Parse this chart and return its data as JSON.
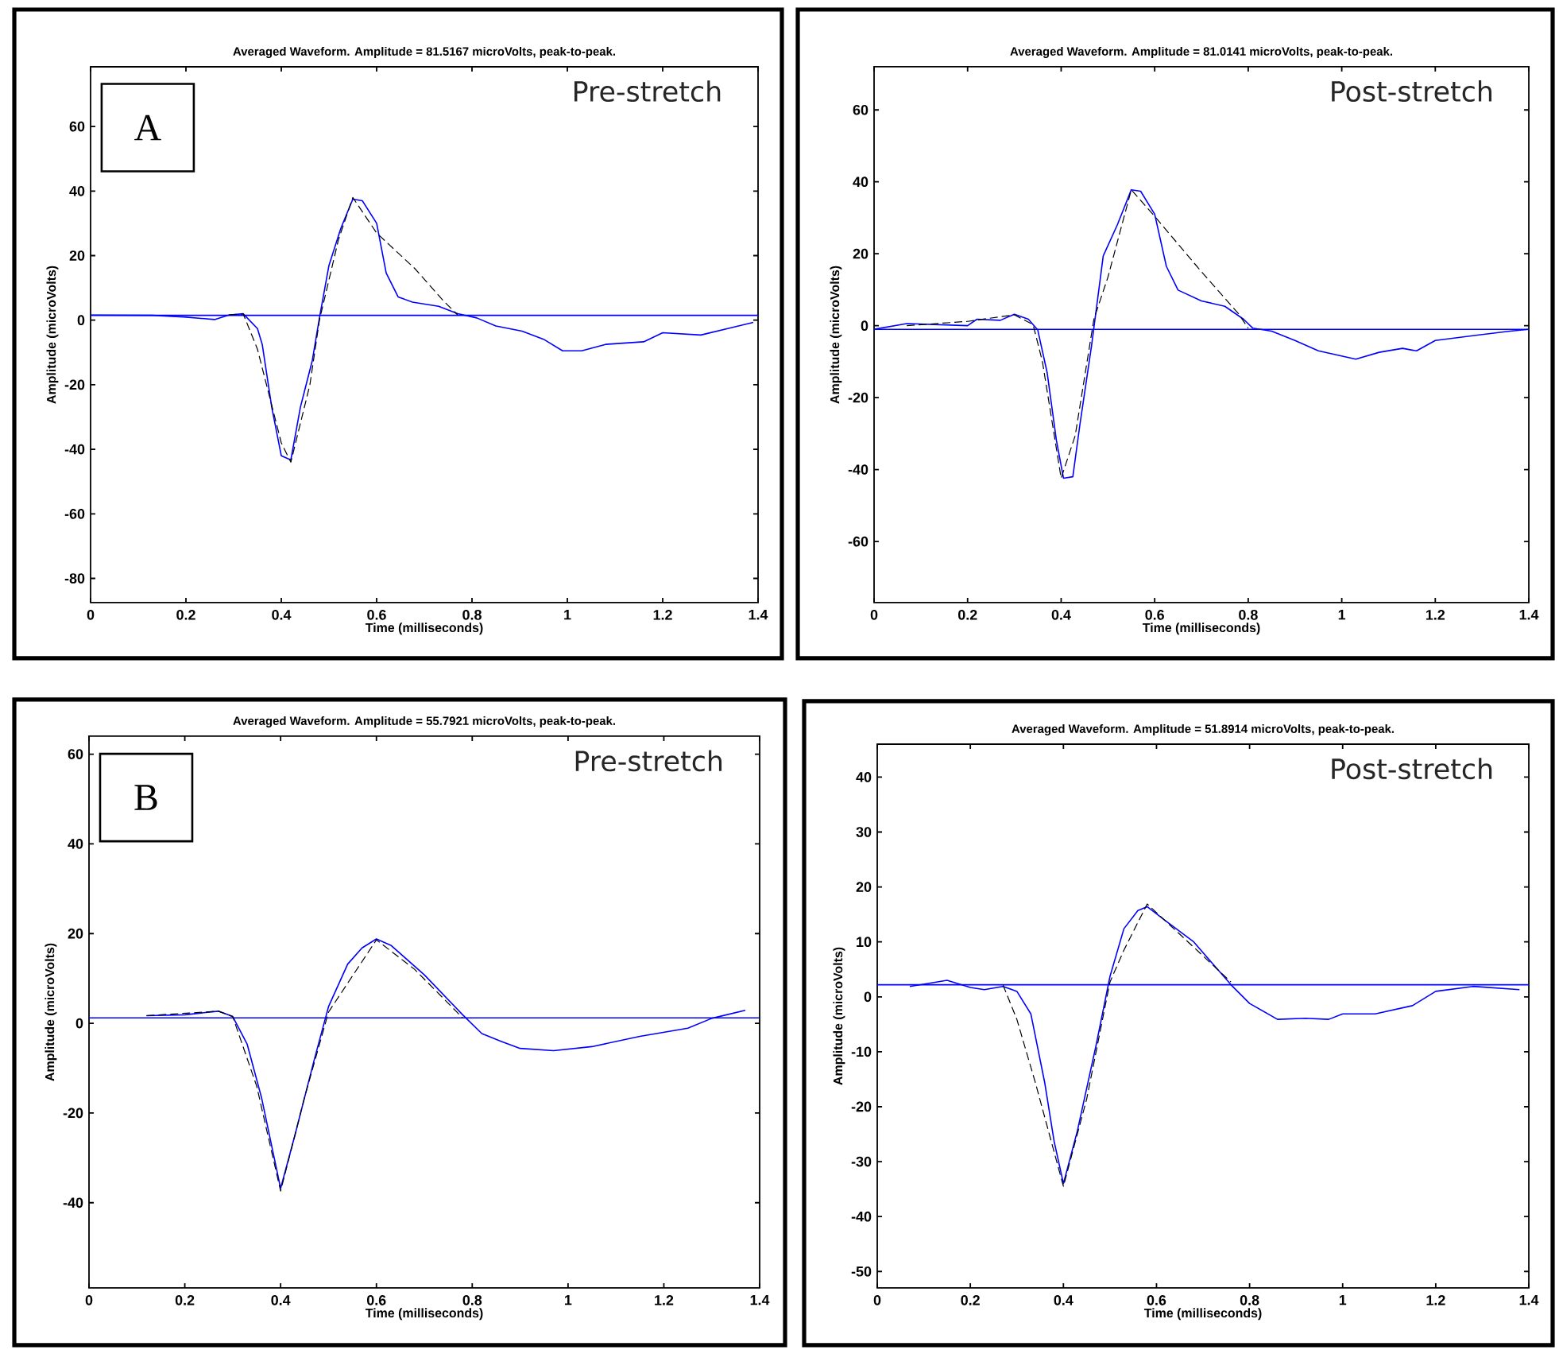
{
  "chart_data": [
    {
      "type": "line",
      "title": "Averaged Waveform.  Amplitude =  81.5167 microVolts, peak-to-peak.",
      "xlabel": "Time (milliseconds)",
      "ylabel": "Amplitude (microVolts)",
      "annotations": [
        "A",
        "Pre-stretch"
      ],
      "xlim": [
        0,
        1.4
      ],
      "ylim": [
        -87.5,
        78.5
      ],
      "xticks": [
        0,
        0.2,
        0.4,
        0.6,
        0.8,
        1,
        1.2,
        1.4
      ],
      "yticks": [
        -80,
        -60,
        -40,
        -20,
        0,
        20,
        40,
        60
      ],
      "ref_lines": [
        {
          "axis": "y",
          "value": 1.5,
          "color": "#0000ff"
        }
      ],
      "series": [
        {
          "color": "#0000ff",
          "line_style": "solid",
          "x": [
            0,
            0.13,
            0.195,
            0.26,
            0.29,
            0.32,
            0.35,
            0.36,
            0.38,
            0.4,
            0.42,
            0.44,
            0.465,
            0.48,
            0.5,
            0.525,
            0.55,
            0.57,
            0.6,
            0.62,
            0.645,
            0.675,
            0.73,
            0.77,
            0.81,
            0.85,
            0.905,
            0.95,
            0.99,
            1.03,
            1.08,
            1.16,
            1.2,
            1.28,
            1.345,
            1.39
          ],
          "values": [
            1.6,
            1.5,
            1,
            0.2,
            1.6,
            2,
            -2.6,
            -7.5,
            -27,
            -42,
            -43.3,
            -27,
            -12.5,
            0.7,
            17,
            28.5,
            37.5,
            37,
            30,
            14.6,
            7.2,
            5.6,
            4.3,
            2,
            0.7,
            -1.8,
            -3.4,
            -5.9,
            -9.5,
            -9.5,
            -7.5,
            -6.7,
            -3.9,
            -4.6,
            -2.3,
            -0.7
          ]
        },
        {
          "color": "#000000",
          "line_style": "dashed",
          "x": [
            0.29,
            0.32,
            0.35,
            0.4,
            0.42,
            0.46,
            0.48,
            0.52,
            0.55,
            0.6,
            0.68,
            0.74,
            0.77
          ],
          "values": [
            1.6,
            2,
            -9,
            -38,
            -44,
            -20,
            0,
            25,
            38,
            27,
            16,
            6,
            1.6
          ]
        }
      ]
    },
    {
      "type": "line",
      "title": "Averaged Waveform.  Amplitude =  81.0141 microVolts, peak-to-peak.",
      "xlabel": "Time (milliseconds)",
      "ylabel": "Amplitude (microVolts)",
      "annotations": [
        "Post-stretch"
      ],
      "xlim": [
        0,
        1.4
      ],
      "ylim": [
        -77,
        72
      ],
      "xticks": [
        0,
        0.2,
        0.4,
        0.6,
        0.8,
        1,
        1.2,
        1.4
      ],
      "yticks": [
        -60,
        -40,
        -20,
        0,
        20,
        40,
        60
      ],
      "ref_lines": [
        {
          "axis": "y",
          "value": -1,
          "color": "#0000ff"
        }
      ],
      "series": [
        {
          "color": "#0000ff",
          "line_style": "solid",
          "x": [
            0,
            0.07,
            0.2,
            0.22,
            0.27,
            0.3,
            0.33,
            0.35,
            0.37,
            0.39,
            0.405,
            0.425,
            0.44,
            0.465,
            0.49,
            0.52,
            0.55,
            0.57,
            0.6,
            0.625,
            0.65,
            0.7,
            0.75,
            0.79,
            0.81,
            0.85,
            0.9,
            0.95,
            1.03,
            1.08,
            1.13,
            1.16,
            1.2,
            1.29,
            1.36,
            1.4
          ],
          "values": [
            -1,
            0.6,
            0,
            1.8,
            1.5,
            3.2,
            1.8,
            -1.2,
            -13,
            -32,
            -42.4,
            -42,
            -27.6,
            -5.6,
            19.4,
            28,
            37.8,
            37.4,
            31,
            16.5,
            9.9,
            6.9,
            5.4,
            1.8,
            -0.7,
            -1.5,
            -4.1,
            -7,
            -9.3,
            -7.4,
            -6.3,
            -7,
            -4.1,
            -2.6,
            -1.5,
            -1
          ]
        },
        {
          "color": "#000000",
          "line_style": "dashed",
          "x": [
            0.07,
            0.2,
            0.27,
            0.3,
            0.34,
            0.36,
            0.4,
            0.43,
            0.47,
            0.5,
            0.55,
            0.6,
            0.7,
            0.78,
            0.8
          ],
          "values": [
            0,
            1.2,
            2.5,
            3,
            0.3,
            -10,
            -42.4,
            -30.6,
            1.8,
            13.5,
            37.8,
            30.4,
            15,
            3.2,
            -0.7
          ]
        }
      ]
    },
    {
      "type": "line",
      "title": "Averaged Waveform.  Amplitude =  55.7921 microVolts, peak-to-peak.",
      "xlabel": "Time (milliseconds)",
      "ylabel": "Amplitude (microVolts)",
      "annotations": [
        "B",
        "Pre-stretch"
      ],
      "xlim": [
        0,
        1.4
      ],
      "ylim": [
        -59,
        64
      ],
      "xticks": [
        0,
        0.2,
        0.4,
        0.6,
        0.8,
        1,
        1.2,
        1.4
      ],
      "yticks": [
        -40,
        -20,
        0,
        20,
        40,
        60
      ],
      "ref_lines": [
        {
          "axis": "y",
          "value": 1.2,
          "color": "#0000ff"
        }
      ],
      "series": [
        {
          "color": "#0000ff",
          "line_style": "solid",
          "x": [
            0.12,
            0.2,
            0.27,
            0.3,
            0.33,
            0.36,
            0.4,
            0.43,
            0.47,
            0.5,
            0.54,
            0.57,
            0.6,
            0.63,
            0.7,
            0.78,
            0.82,
            0.86,
            0.9,
            0.97,
            1.05,
            1.15,
            1.25,
            1.3,
            1.37
          ],
          "values": [
            1.7,
            1.9,
            2.7,
            1.5,
            -4.6,
            -16.5,
            -36.8,
            -24.9,
            -8.2,
            3.7,
            13.2,
            16.8,
            18.8,
            17.4,
            10.8,
            1.9,
            -2.3,
            -4,
            -5.6,
            -6.1,
            -5.2,
            -2.9,
            -1.1,
            1.1,
            2.9
          ]
        },
        {
          "color": "#000000",
          "line_style": "dashed",
          "x": [
            0.12,
            0.27,
            0.3,
            0.35,
            0.4,
            0.45,
            0.5,
            0.6,
            0.68,
            0.78
          ],
          "values": [
            1.7,
            2.7,
            1.5,
            -14,
            -37.4,
            -16.5,
            2.5,
            18.6,
            12,
            1.2
          ]
        }
      ]
    },
    {
      "type": "line",
      "title": "Averaged Waveform.  Amplitude =  51.8914 microVolts, peak-to-peak.",
      "xlabel": "Time (milliseconds)",
      "ylabel": "Amplitude (microVolts)",
      "annotations": [
        "Post-stretch"
      ],
      "xlim": [
        0,
        1.4
      ],
      "ylim": [
        -53,
        46
      ],
      "xticks": [
        0,
        0.2,
        0.4,
        0.6,
        0.8,
        1,
        1.2,
        1.4
      ],
      "yticks": [
        -50,
        -40,
        -30,
        -20,
        -10,
        0,
        10,
        20,
        30,
        40
      ],
      "ref_lines": [
        {
          "axis": "y",
          "value": 2.2,
          "color": "#0000ff"
        }
      ],
      "series": [
        {
          "color": "#0000ff",
          "line_style": "solid",
          "x": [
            0.07,
            0.15,
            0.2,
            0.23,
            0.27,
            0.3,
            0.33,
            0.36,
            0.38,
            0.4,
            0.43,
            0.47,
            0.5,
            0.53,
            0.56,
            0.58,
            0.62,
            0.68,
            0.76,
            0.8,
            0.86,
            0.92,
            0.97,
            1.0,
            1.07,
            1.15,
            1.2,
            1.28,
            1.38
          ],
          "values": [
            1.9,
            3,
            1.7,
            1.3,
            1.9,
            1,
            -3.1,
            -15.7,
            -26.3,
            -34,
            -24.4,
            -8.9,
            3.7,
            12.4,
            15.7,
            16.4,
            13.8,
            10,
            2.2,
            -1.2,
            -4.1,
            -3.9,
            -4.1,
            -3.1,
            -3.1,
            -1.6,
            1,
            1.9,
            1.3
          ]
        },
        {
          "color": "#000000",
          "line_style": "dashed",
          "x": [
            0.27,
            0.3,
            0.34,
            0.4,
            0.45,
            0.5,
            0.53,
            0.58,
            0.65,
            0.76
          ],
          "values": [
            2.2,
            -4.1,
            -15.7,
            -34.5,
            -18.6,
            2.7,
            8.5,
            16.9,
            11.4,
            2.7
          ]
        }
      ]
    }
  ]
}
